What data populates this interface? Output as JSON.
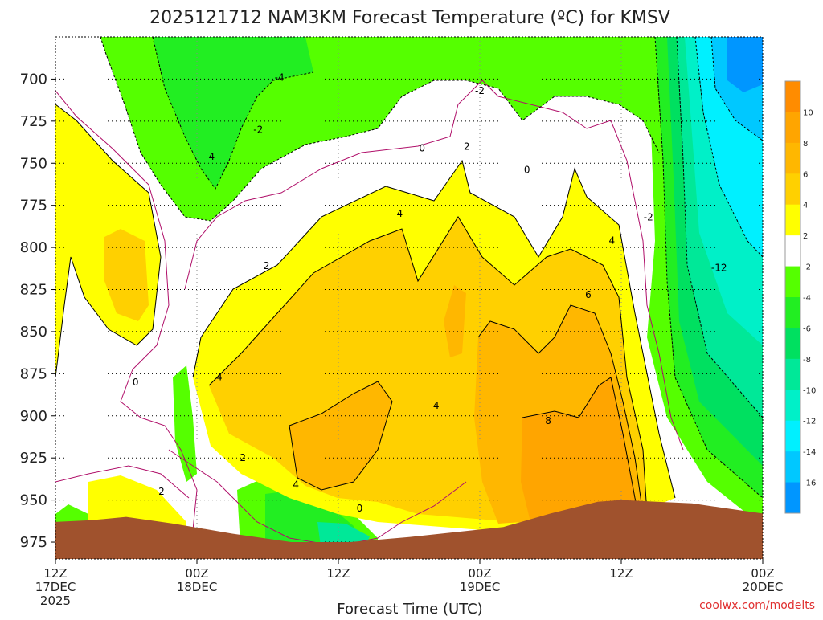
{
  "chart_data": {
    "type": "contour",
    "title": "2025121712 NAM3KM Forecast Temperature (ºC) for KMSV",
    "xlabel": "Forecast Time (UTC)",
    "credit": "coolwx.com/modelts",
    "y_axis": {
      "unit": "hPa",
      "range": [
        675,
        985
      ],
      "ticks": [
        700,
        725,
        750,
        775,
        800,
        825,
        850,
        875,
        900,
        925,
        950,
        975
      ]
    },
    "x_axis": {
      "range": [
        0,
        60
      ],
      "ticks": [
        {
          "hour": 0,
          "label": "12Z",
          "date": "17DEC",
          "year": "2025"
        },
        {
          "hour": 12,
          "label": "00Z",
          "date": "18DEC"
        },
        {
          "hour": 24,
          "label": "12Z"
        },
        {
          "hour": 36,
          "label": "00Z",
          "date": "19DEC"
        },
        {
          "hour": 48,
          "label": "12Z"
        },
        {
          "hour": 60,
          "label": "00Z",
          "date": "20DEC"
        }
      ]
    },
    "colorbar": {
      "bands": [
        {
          "min": 10,
          "max": 12,
          "color": "#ff8c00"
        },
        {
          "min": 8,
          "max": 10,
          "color": "#ffa500"
        },
        {
          "min": 6,
          "max": 8,
          "color": "#ffb700"
        },
        {
          "min": 4,
          "max": 6,
          "color": "#ffd000"
        },
        {
          "min": 2,
          "max": 4,
          "color": "#ffff00"
        },
        {
          "min": -2,
          "max": 2,
          "color": "#ffffff"
        },
        {
          "min": -4,
          "max": -2,
          "color": "#55ff00"
        },
        {
          "min": -6,
          "max": -4,
          "color": "#22ee22"
        },
        {
          "min": -8,
          "max": -6,
          "color": "#00e060"
        },
        {
          "min": -10,
          "max": -8,
          "color": "#00e898"
        },
        {
          "min": -12,
          "max": -10,
          "color": "#00f0c8"
        },
        {
          "min": -14,
          "max": -12,
          "color": "#00f0ff"
        },
        {
          "min": -16,
          "max": -14,
          "color": "#00c8ff"
        },
        {
          "min": -18,
          "max": -16,
          "color": "#0096ff"
        }
      ],
      "labels": [
        "10",
        "8",
        "6",
        "4",
        "2",
        "-2",
        "-4",
        "-6",
        "-8",
        "-10",
        "-12",
        "-14",
        "-16"
      ]
    },
    "contour_labels": [
      {
        "text": "-4",
        "hour": 19.0,
        "p": 699
      },
      {
        "text": "-2",
        "hour": 17.2,
        "p": 730
      },
      {
        "text": "-4",
        "hour": 13.1,
        "p": 746
      },
      {
        "text": "-2",
        "hour": 36.0,
        "p": 707
      },
      {
        "text": "0",
        "hour": 31.1,
        "p": 741
      },
      {
        "text": "2",
        "hour": 34.9,
        "p": 740
      },
      {
        "text": "0",
        "hour": 40.0,
        "p": 754
      },
      {
        "text": "4",
        "hour": 29.2,
        "p": 780
      },
      {
        "text": "2",
        "hour": 17.9,
        "p": 811
      },
      {
        "text": "4",
        "hour": 47.2,
        "p": 796
      },
      {
        "text": "6",
        "hour": 45.2,
        "p": 828
      },
      {
        "text": "-2",
        "hour": 50.3,
        "p": 782
      },
      {
        "text": "-12",
        "hour": 56.3,
        "p": 812
      },
      {
        "text": "0",
        "hour": 6.8,
        "p": 880
      },
      {
        "text": "4",
        "hour": 13.9,
        "p": 877
      },
      {
        "text": "4",
        "hour": 32.3,
        "p": 894
      },
      {
        "text": "8",
        "hour": 41.8,
        "p": 903
      },
      {
        "text": "2",
        "hour": 15.9,
        "p": 925
      },
      {
        "text": "4",
        "hour": 20.4,
        "p": 941
      },
      {
        "text": "2",
        "hour": 9.0,
        "p": 945
      },
      {
        "text": "0",
        "hour": 25.8,
        "p": 955
      }
    ],
    "terrain": {
      "color": "#a0522d",
      "hours": [
        0,
        3,
        6,
        10,
        15,
        20,
        25,
        30,
        34,
        38,
        42,
        46,
        48,
        51,
        54,
        57,
        60
      ],
      "pressure": [
        963,
        962,
        960,
        964,
        970,
        975,
        975,
        972,
        969,
        966,
        958,
        951,
        950,
        951,
        952,
        955,
        958
      ]
    }
  }
}
